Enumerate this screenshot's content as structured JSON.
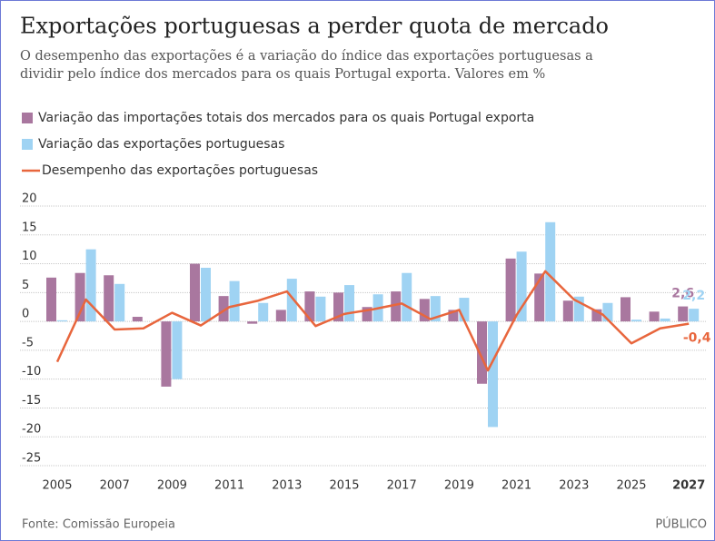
{
  "chart_data": {
    "type": "bar-line",
    "title": "Exportações portuguesas a perder quota de mercado",
    "subtitle": "O desempenho das exportações é a variação do índice das exportações portuguesas a dividir pelo índice dos mercados para os quais Portugal exporta. Valores em %",
    "categories": [
      "2005",
      null,
      "2007",
      null,
      "2009",
      null,
      "2011",
      null,
      "2013",
      null,
      "2015",
      null,
      "2017",
      null,
      "2019",
      null,
      "2021",
      null,
      "2023",
      null,
      "2025",
      null,
      "2027"
    ],
    "series": [
      {
        "name": "Variação das importações totais dos mercados para os quais Portugal exporta",
        "type": "bar",
        "color": "#a9779f",
        "values": [
          7.6,
          8.4,
          8.0,
          0.8,
          -11.3,
          10.0,
          4.4,
          -0.4,
          2.0,
          5.2,
          5.0,
          2.5,
          5.2,
          3.9,
          2.0,
          -10.8,
          10.9,
          8.3,
          3.6,
          2.1,
          4.2,
          1.7,
          2.6
        ],
        "value_labels": [
          null,
          null,
          null,
          null,
          null,
          null,
          null,
          null,
          null,
          null,
          null,
          null,
          null,
          null,
          null,
          null,
          null,
          null,
          null,
          null,
          null,
          null,
          "2,6"
        ]
      },
      {
        "name": "Variação das exportações portuguesas",
        "type": "bar",
        "color": "#9fd3f3",
        "values": [
          0.2,
          12.5,
          6.5,
          0.0,
          -10.0,
          9.3,
          7.0,
          3.2,
          7.4,
          4.3,
          6.3,
          4.7,
          8.4,
          4.4,
          4.1,
          -18.3,
          12.1,
          17.2,
          4.3,
          3.2,
          0.3,
          0.5,
          2.2
        ],
        "value_labels": [
          null,
          null,
          null,
          null,
          null,
          null,
          null,
          null,
          null,
          null,
          null,
          null,
          null,
          null,
          null,
          null,
          null,
          null,
          null,
          null,
          null,
          null,
          "2,2"
        ]
      },
      {
        "name": "Desempenho das exportações portuguesas",
        "type": "line",
        "color": "#e8663d",
        "values": [
          -7.0,
          3.8,
          -1.4,
          -1.2,
          1.5,
          -0.7,
          2.5,
          3.6,
          5.2,
          -0.8,
          1.3,
          2.1,
          3.1,
          0.4,
          2.0,
          -8.5,
          1.1,
          8.7,
          3.8,
          1.2,
          -3.8,
          -1.2,
          -0.4
        ],
        "value_labels": [
          null,
          null,
          null,
          null,
          null,
          null,
          null,
          null,
          null,
          null,
          null,
          null,
          null,
          null,
          null,
          null,
          null,
          null,
          null,
          null,
          null,
          null,
          "-0,4"
        ]
      }
    ],
    "ylim": [
      -25,
      20
    ],
    "yticks": [
      20,
      15,
      10,
      5,
      0,
      -5,
      -10,
      -15,
      -20,
      -25
    ],
    "grid": true,
    "source": "Fonte: Comissão Europeia",
    "brand": "PÚBLICO"
  }
}
